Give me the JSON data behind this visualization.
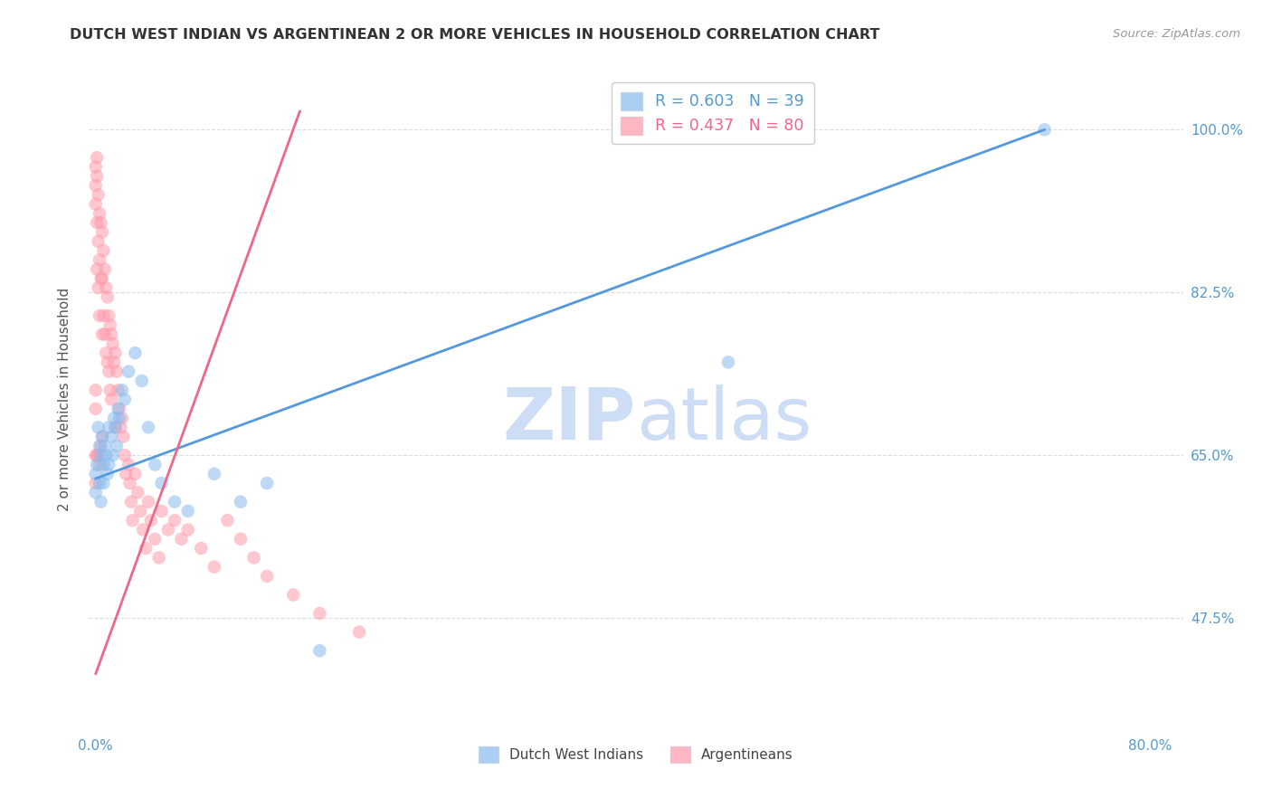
{
  "title": "DUTCH WEST INDIAN VS ARGENTINEAN 2 OR MORE VEHICLES IN HOUSEHOLD CORRELATION CHART",
  "source": "Source: ZipAtlas.com",
  "ylabel": "2 or more Vehicles in Household",
  "blue_color": "#88BBEE",
  "pink_color": "#FF99AA",
  "blue_line_color": "#5599DD",
  "pink_line_color": "#EE6688",
  "watermark_color": "#CCDDF5",
  "legend1_r": "0.603",
  "legend1_n": "39",
  "legend2_r": "0.437",
  "legend2_n": "80",
  "legend1_text_color": "#5599CC",
  "legend2_text_color": "#EE6688",
  "ytick_color": "#5599CC",
  "xtick_color": "#5599CC",
  "title_color": "#333333",
  "source_color": "#999999",
  "grid_color": "#DDDDDD",
  "ylabel_color": "#555555",
  "blue_x": [
    0.0,
    0.0,
    0.001,
    0.002,
    0.003,
    0.003,
    0.004,
    0.004,
    0.005,
    0.006,
    0.006,
    0.007,
    0.008,
    0.009,
    0.01,
    0.01,
    0.012,
    0.013,
    0.014,
    0.015,
    0.016,
    0.017,
    0.018,
    0.02,
    0.022,
    0.025,
    0.03,
    0.035,
    0.04,
    0.045,
    0.05,
    0.06,
    0.07,
    0.09,
    0.11,
    0.13,
    0.17,
    0.48,
    0.72
  ],
  "blue_y": [
    0.63,
    0.61,
    0.64,
    0.68,
    0.66,
    0.62,
    0.65,
    0.6,
    0.67,
    0.64,
    0.62,
    0.66,
    0.65,
    0.63,
    0.68,
    0.64,
    0.67,
    0.65,
    0.69,
    0.68,
    0.66,
    0.7,
    0.69,
    0.72,
    0.71,
    0.74,
    0.76,
    0.73,
    0.68,
    0.64,
    0.62,
    0.6,
    0.59,
    0.63,
    0.6,
    0.62,
    0.44,
    0.75,
    1.0
  ],
  "pink_x": [
    0.0,
    0.0,
    0.0,
    0.0,
    0.0,
    0.0,
    0.0,
    0.001,
    0.001,
    0.001,
    0.001,
    0.001,
    0.002,
    0.002,
    0.002,
    0.002,
    0.003,
    0.003,
    0.003,
    0.003,
    0.004,
    0.004,
    0.004,
    0.005,
    0.005,
    0.005,
    0.005,
    0.006,
    0.006,
    0.007,
    0.007,
    0.008,
    0.008,
    0.009,
    0.009,
    0.01,
    0.01,
    0.011,
    0.011,
    0.012,
    0.012,
    0.013,
    0.014,
    0.015,
    0.015,
    0.016,
    0.017,
    0.018,
    0.019,
    0.02,
    0.021,
    0.022,
    0.023,
    0.025,
    0.026,
    0.027,
    0.028,
    0.03,
    0.032,
    0.034,
    0.036,
    0.038,
    0.04,
    0.042,
    0.045,
    0.048,
    0.05,
    0.055,
    0.06,
    0.065,
    0.07,
    0.08,
    0.09,
    0.1,
    0.11,
    0.12,
    0.13,
    0.15,
    0.17,
    0.2
  ],
  "pink_y": [
    0.96,
    0.94,
    0.92,
    0.72,
    0.7,
    0.65,
    0.62,
    0.97,
    0.95,
    0.9,
    0.85,
    0.65,
    0.93,
    0.88,
    0.83,
    0.65,
    0.91,
    0.86,
    0.8,
    0.64,
    0.9,
    0.84,
    0.66,
    0.89,
    0.84,
    0.78,
    0.67,
    0.87,
    0.8,
    0.85,
    0.78,
    0.83,
    0.76,
    0.82,
    0.75,
    0.8,
    0.74,
    0.79,
    0.72,
    0.78,
    0.71,
    0.77,
    0.75,
    0.76,
    0.68,
    0.74,
    0.72,
    0.7,
    0.68,
    0.69,
    0.67,
    0.65,
    0.63,
    0.64,
    0.62,
    0.6,
    0.58,
    0.63,
    0.61,
    0.59,
    0.57,
    0.55,
    0.6,
    0.58,
    0.56,
    0.54,
    0.59,
    0.57,
    0.58,
    0.56,
    0.57,
    0.55,
    0.53,
    0.58,
    0.56,
    0.54,
    0.52,
    0.5,
    0.48,
    0.46
  ],
  "blue_line_x0": 0.0,
  "blue_line_x1": 0.72,
  "blue_line_y0": 0.625,
  "blue_line_y1": 1.0,
  "pink_line_x0": 0.0,
  "pink_line_x1": 0.155,
  "pink_line_y0": 0.415,
  "pink_line_y1": 1.02,
  "xmin": -0.005,
  "xmax": 0.825,
  "ymin": 0.35,
  "ymax": 1.07,
  "ytick_vals": [
    0.475,
    0.65,
    0.825,
    1.0
  ],
  "ytick_labels": [
    "47.5%",
    "65.0%",
    "82.5%",
    "100.0%"
  ],
  "xtick_vals": [
    0.0,
    0.2,
    0.4,
    0.6,
    0.8
  ],
  "xtick_labels": [
    "0.0%",
    "",
    "",
    "",
    "80.0%"
  ]
}
